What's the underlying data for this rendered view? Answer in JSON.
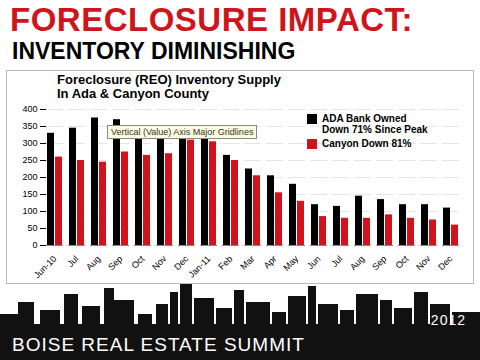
{
  "slide": {
    "heading": "FORECLOSURE IMPACT:",
    "subheading": "INVENTORY DIMINISHING",
    "footer": "BOISE REAL ESTATE SUMMIT",
    "year": "2012"
  },
  "chart_data": {
    "type": "bar",
    "title": "Foreclosure (REO) Inventory Supply In Ada & Canyon County",
    "annotation": "Vertical (Value) Axis Major Gridlines",
    "categories": [
      "Jun-10",
      "Jul",
      "Aug",
      "Sep",
      "Oct",
      "Nov",
      "Dec",
      "Jan-11",
      "Feb",
      "Mar",
      "Apr",
      "May",
      "Jun",
      "Jul",
      "Aug",
      "Sep",
      "Oct",
      "Nov",
      "Dec"
    ],
    "series": [
      {
        "name": "ADA Bank Owned Down 71% Since Peak",
        "color": "#000000",
        "values": [
          330,
          345,
          375,
          370,
          335,
          315,
          330,
          320,
          265,
          225,
          205,
          180,
          120,
          115,
          145,
          135,
          120,
          120,
          110
        ]
      },
      {
        "name": "Canyon Down 81%",
        "color": "#d0141c",
        "values": [
          260,
          250,
          245,
          275,
          265,
          270,
          310,
          305,
          250,
          205,
          155,
          130,
          85,
          80,
          80,
          90,
          80,
          75,
          60
        ]
      }
    ],
    "ylim": [
      0,
      400
    ],
    "yticks": [
      0,
      50,
      100,
      150,
      200,
      250,
      300,
      350,
      400
    ],
    "grid": true,
    "legend": "right"
  }
}
